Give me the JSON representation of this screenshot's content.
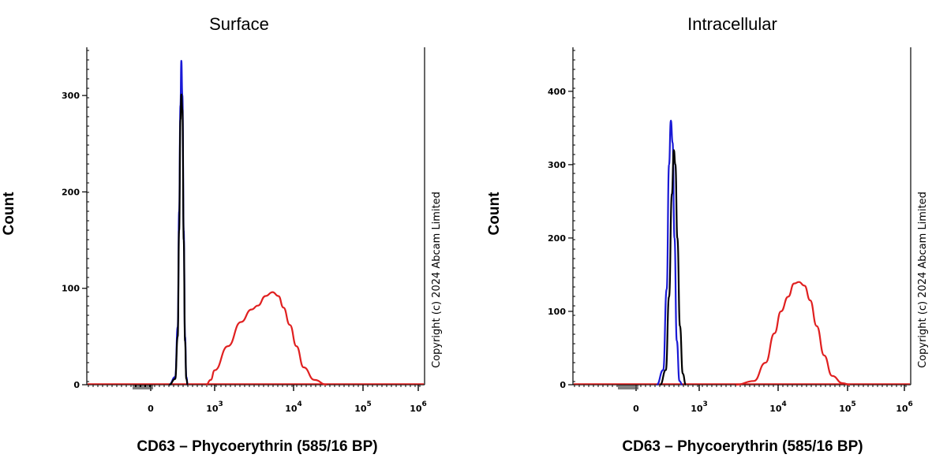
{
  "colors": {
    "blue": "#1a1ad6",
    "black": "#000000",
    "red": "#e02020"
  },
  "chart_data": [
    {
      "type": "line",
      "title": "Surface",
      "xlabel": "CD63 – Phycoerythrin (585/16 BP)",
      "ylabel": "Count",
      "copyright": "Copyright (c) 2024 Abcam Limited",
      "xscale": "biexponential",
      "x_ticks": [
        {
          "base": "0",
          "exp": ""
        },
        {
          "base": "10",
          "exp": "3"
        },
        {
          "base": "10",
          "exp": "4"
        },
        {
          "base": "10",
          "exp": "5"
        },
        {
          "base": "10",
          "exp": "6"
        }
      ],
      "y_ticks": [
        0,
        100,
        200,
        300
      ],
      "ylim": [
        0,
        350
      ],
      "grid": false,
      "series": [
        {
          "color": "blue",
          "points": [
            [
              100,
              0
            ],
            [
              150,
              8
            ],
            [
              175,
              60
            ],
            [
              190,
              180
            ],
            [
              205,
              290
            ],
            [
              215,
              336
            ],
            [
              228,
              300
            ],
            [
              245,
              160
            ],
            [
              262,
              50
            ],
            [
              280,
              8
            ],
            [
              300,
              0
            ]
          ]
        },
        {
          "color": "black",
          "points": [
            [
              100,
              0
            ],
            [
              150,
              6
            ],
            [
              175,
              50
            ],
            [
              190,
              160
            ],
            [
              205,
              275
            ],
            [
              215,
              301
            ],
            [
              228,
              285
            ],
            [
              245,
              150
            ],
            [
              262,
              45
            ],
            [
              280,
              6
            ],
            [
              300,
              0
            ]
          ]
        },
        {
          "color": "red",
          "points": [
            [
              700,
              0
            ],
            [
              850,
              5
            ],
            [
              1000,
              15
            ],
            [
              1500,
              40
            ],
            [
              2200,
              65
            ],
            [
              3000,
              78
            ],
            [
              3600,
              82
            ],
            [
              4500,
              92
            ],
            [
              5500,
              96
            ],
            [
              6500,
              92
            ],
            [
              7500,
              80
            ],
            [
              9000,
              62
            ],
            [
              11000,
              40
            ],
            [
              14000,
              18
            ],
            [
              20000,
              5
            ],
            [
              30000,
              0
            ]
          ]
        }
      ]
    },
    {
      "type": "line",
      "title": "Intracellular",
      "xlabel": "CD63 – Phycoerythrin (585/16 BP)",
      "ylabel": "Count",
      "copyright": "Copyright (c) 2024 Abcam Limited",
      "xscale": "biexponential",
      "x_ticks": [
        {
          "base": "0",
          "exp": ""
        },
        {
          "base": "10",
          "exp": "3"
        },
        {
          "base": "10",
          "exp": "4"
        },
        {
          "base": "10",
          "exp": "5"
        },
        {
          "base": "10",
          "exp": "6"
        }
      ],
      "y_ticks": [
        0,
        100,
        200,
        300,
        400
      ],
      "ylim": [
        0,
        460
      ],
      "grid": false,
      "series": [
        {
          "color": "blue",
          "points": [
            [
              120,
              0
            ],
            [
              180,
              20
            ],
            [
              220,
              130
            ],
            [
              250,
              300
            ],
            [
              275,
              360
            ],
            [
              300,
              330
            ],
            [
              330,
              200
            ],
            [
              370,
              60
            ],
            [
              420,
              5
            ],
            [
              480,
              0
            ]
          ]
        },
        {
          "color": "black",
          "points": [
            [
              150,
              0
            ],
            [
              210,
              20
            ],
            [
              250,
              120
            ],
            [
              290,
              260
            ],
            [
              320,
              320
            ],
            [
              345,
              300
            ],
            [
              380,
              200
            ],
            [
              430,
              80
            ],
            [
              490,
              15
            ],
            [
              560,
              0
            ]
          ]
        },
        {
          "color": "red",
          "points": [
            [
              3000,
              0
            ],
            [
              5000,
              5
            ],
            [
              7000,
              30
            ],
            [
              9000,
              70
            ],
            [
              11000,
              100
            ],
            [
              14000,
              120
            ],
            [
              17000,
              138
            ],
            [
              20000,
              140
            ],
            [
              24000,
              135
            ],
            [
              29000,
              115
            ],
            [
              36000,
              80
            ],
            [
              46000,
              40
            ],
            [
              60000,
              12
            ],
            [
              85000,
              2
            ],
            [
              110000,
              0
            ]
          ]
        }
      ]
    }
  ]
}
